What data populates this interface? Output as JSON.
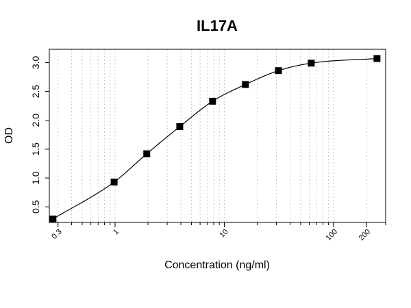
{
  "chart_data": {
    "type": "scatter",
    "title": "IL17A",
    "xlabel": "Concentration (ng/ml)",
    "ylabel": "OD",
    "x_scale": "log",
    "xlim": [
      0.25,
      300
    ],
    "ylim": [
      0.23,
      3.23
    ],
    "x_ticks": [
      0.3,
      1,
      10,
      100,
      200
    ],
    "x_tick_labels": [
      "0.3",
      "1",
      "10",
      "100",
      "200"
    ],
    "y_ticks": [
      0.5,
      1.0,
      1.5,
      2.0,
      2.5,
      3.0
    ],
    "y_tick_labels": [
      "0.5",
      "1.0",
      "1.5",
      "2.0",
      "2.5",
      "3.0"
    ],
    "grid": "vertical dotted",
    "series": [
      {
        "marker": "filled-square",
        "x": [
          0.27,
          0.98,
          1.95,
          3.91,
          7.81,
          15.6,
          31.3,
          62.5,
          250
        ],
        "y": [
          0.29,
          0.93,
          1.42,
          1.89,
          2.33,
          2.62,
          2.86,
          2.99,
          3.07
        ]
      }
    ],
    "fit_curve": {
      "type": "4PL",
      "color": "#000000"
    }
  }
}
